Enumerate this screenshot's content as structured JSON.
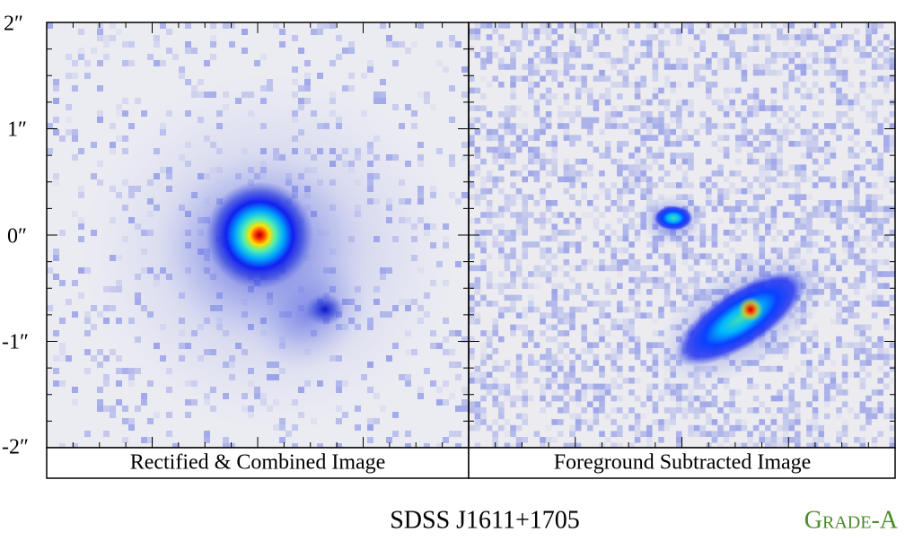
{
  "y_axis": {
    "ticks": [
      "2″",
      "1″",
      "0″",
      "-1″",
      "-2″"
    ]
  },
  "panels": [
    {
      "label": "Rectified & Combined Image"
    },
    {
      "label": "Foreground Subtracted Image"
    }
  ],
  "footer": {
    "object": "SDSS J1611+1705",
    "grade": "Grade-A"
  }
}
